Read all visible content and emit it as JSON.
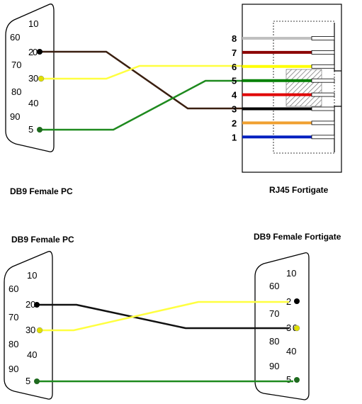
{
  "top": {
    "left_label": "DB9 Female PC",
    "right_label": "RJ45 Fortigate",
    "db9_left": {
      "pins": {
        "p1": "10",
        "p2": "2",
        "p3": "3",
        "p4": "40",
        "p5": "5",
        "p6": "60",
        "p7": "70",
        "p8": "80",
        "p9": "90"
      },
      "zero": "0"
    },
    "rj45": {
      "pins": [
        "8",
        "7",
        "6",
        "5",
        "4",
        "3",
        "2",
        "1"
      ],
      "colors": [
        "#c0c0c0",
        "#8b0000",
        "#ffff00",
        "#008000",
        "#e00000",
        "#000000",
        "#f0a030",
        "#0020c0"
      ]
    },
    "wires": [
      {
        "from": "2",
        "to": "3",
        "color": "#3a1f10"
      },
      {
        "from": "3",
        "to": "6",
        "color": "#ffff40"
      },
      {
        "from": "5",
        "to": "5",
        "color": "#1e8a1e"
      }
    ]
  },
  "bottom": {
    "left_label": "DB9 Female PC",
    "right_label": "DB9 Female Fortigate",
    "db9_left": {
      "pins": {
        "p1": "10",
        "p2": "2",
        "p3": "3",
        "p4": "40",
        "p5": "5",
        "p6": "60",
        "p7": "70",
        "p8": "80",
        "p9": "90"
      },
      "zero": "0"
    },
    "db9_right": {
      "pins": {
        "p1": "10",
        "p2": "2",
        "p3": "3",
        "p4": "40",
        "p5": "5",
        "p6": "60",
        "p7": "70",
        "p8": "80",
        "p9": "90"
      },
      "zero": "0"
    },
    "wires": [
      {
        "from": "2",
        "to": "3",
        "color": "#3a1f10"
      },
      {
        "from": "3",
        "to": "2",
        "color": "#ffff40"
      },
      {
        "from": "5",
        "to": "5",
        "color": "#1e8a1e"
      }
    ]
  }
}
